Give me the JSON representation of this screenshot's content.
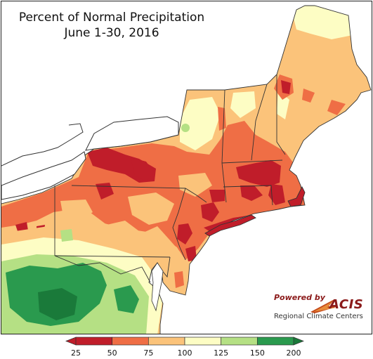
{
  "title": {
    "line1": "Percent of Normal Precipitation",
    "line2": "June 1-30, 2016"
  },
  "logo": {
    "powered_by": "Powered by",
    "name": "ACIS",
    "subtitle": "Regional Climate Centers"
  },
  "legend": {
    "ticks": [
      "25",
      "50",
      "75",
      "100",
      "125",
      "150",
      "200"
    ],
    "bins": [
      {
        "range": "<25",
        "color": "#c01d2a"
      },
      {
        "range": "25-50",
        "color": "#c01d2a"
      },
      {
        "range": "50-75",
        "color": "#ef6e45"
      },
      {
        "range": "75-100",
        "color": "#fbc37a"
      },
      {
        "range": "100-125",
        "color": "#fdfdc4"
      },
      {
        "range": "125-150",
        "color": "#b5e084"
      },
      {
        "range": "150-200",
        "color": "#2a9a4e"
      },
      {
        "range": ">200",
        "color": "#1a7a3a"
      }
    ]
  },
  "colors": {
    "water": "#ffffff",
    "very_dry": "#c01d2a",
    "dry": "#ef6e45",
    "below_normal": "#fbc37a",
    "normal": "#fdfdc4",
    "wet": "#b5e084",
    "very_wet": "#2a9a4e",
    "wettest": "#1a7a3a",
    "borders": "#333333"
  }
}
